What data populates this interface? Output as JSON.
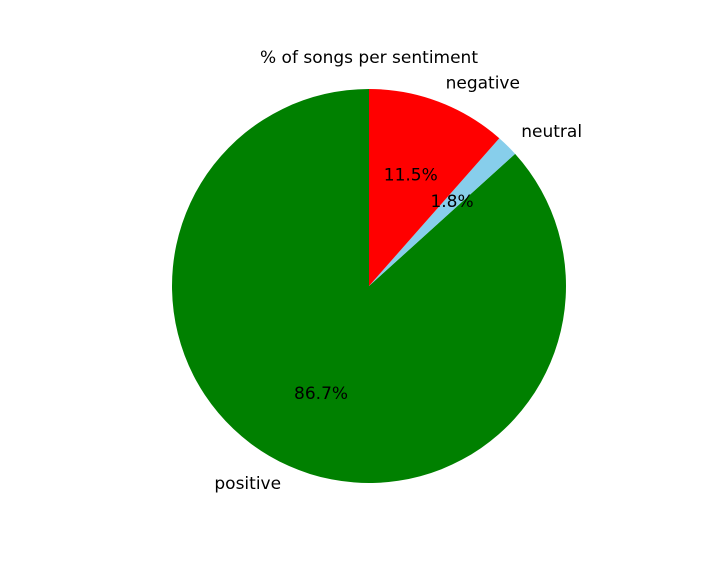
{
  "chart_data": {
    "type": "pie",
    "title": "% of songs per sentiment",
    "labels": [
      "positive",
      "neutral",
      "negative"
    ],
    "values": [
      86.7,
      1.8,
      11.5
    ],
    "value_labels": [
      "86.7%",
      "1.8%",
      "11.5%"
    ],
    "colors": [
      "#008000",
      "#87ceeb",
      "#ff0000"
    ],
    "start_angle_deg": 90,
    "direction": "counterclockwise",
    "legend": "none"
  }
}
